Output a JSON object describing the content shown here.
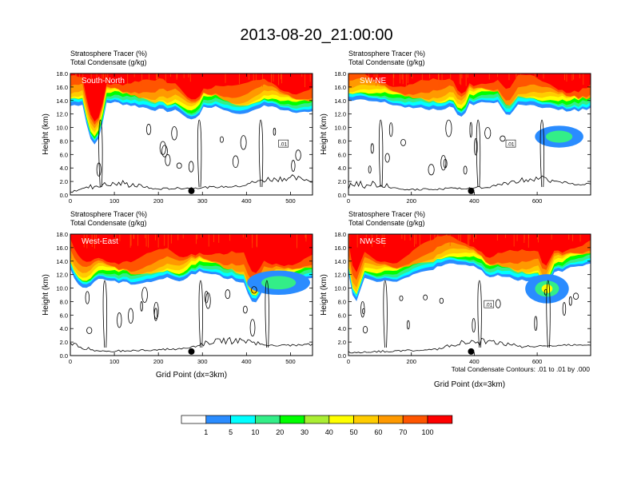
{
  "title": "2013-08-20_21:00:00",
  "footnote": "Total Condensate Contours: .01 to .01 by .000",
  "chart_data": [
    {
      "type": "heatmap",
      "variable_label": "Stratosphere Tracer",
      "variable_units": "(%)",
      "contour_label": "Total Condensate",
      "contour_units": "(g/kg)",
      "panel_label": "South-North",
      "xlabel": "",
      "ylabel": "Height (km)",
      "xlim": [
        0,
        550
      ],
      "ylim": [
        0,
        18
      ],
      "xticks": [
        0,
        100,
        200,
        300,
        400,
        500
      ],
      "yticks": [
        "0.0",
        "2.0",
        "4.0",
        "6.0",
        "8.0",
        "10.0",
        "12.0",
        "14.0",
        "16.0",
        "18.0"
      ],
      "contour_level_label": ".01",
      "marker_x": 275
    },
    {
      "type": "heatmap",
      "variable_label": "Stratosphere Tracer",
      "variable_units": "(%)",
      "contour_label": "Total Condensate",
      "contour_units": "(g/kg)",
      "panel_label": "SW-NE",
      "xlabel": "",
      "ylabel": "Height (km)",
      "xlim": [
        0,
        770
      ],
      "ylim": [
        0,
        18
      ],
      "xticks": [
        0,
        200,
        400,
        600
      ],
      "yticks": [
        "0.0",
        "2.0",
        "4.0",
        "6.0",
        "8.0",
        "10.0",
        "12.0",
        "14.0",
        "16.0",
        "18.0"
      ],
      "contour_level_label": ".01",
      "marker_x": 390
    },
    {
      "type": "heatmap",
      "variable_label": "Stratosphere Tracer",
      "variable_units": "(%)",
      "contour_label": "Total Condensate",
      "contour_units": "(g/kg)",
      "panel_label": "West-East",
      "xlabel": "Grid Point (dx=3km)",
      "ylabel": "Height (km)",
      "xlim": [
        0,
        550
      ],
      "ylim": [
        0,
        18
      ],
      "xticks": [
        0,
        100,
        200,
        300,
        400,
        500
      ],
      "yticks": [
        "0.0",
        "2.0",
        "4.0",
        "6.0",
        "8.0",
        "10.0",
        "12.0",
        "14.0",
        "16.0",
        "18.0"
      ],
      "contour_level_label": "",
      "marker_x": 275
    },
    {
      "type": "heatmap",
      "variable_label": "Stratosphere Tracer",
      "variable_units": "(%)",
      "contour_label": "Total Condensate",
      "contour_units": "(g/kg)",
      "panel_label": "NW-SE",
      "xlabel": "Grid Point (dx=3km)",
      "ylabel": "Height (km)",
      "xlim": [
        0,
        770
      ],
      "ylim": [
        0,
        18
      ],
      "xticks": [
        0,
        200,
        400,
        600
      ],
      "yticks": [
        "0.0",
        "2.0",
        "4.0",
        "6.0",
        "8.0",
        "10.0",
        "12.0",
        "14.0",
        "16.0",
        "18.0"
      ],
      "contour_level_label": ".01",
      "marker_x": 390
    }
  ],
  "colorbar": {
    "levels": [
      "1",
      "5",
      "10",
      "20",
      "30",
      "40",
      "50",
      "60",
      "70",
      "100"
    ],
    "colors": [
      "#ffffff",
      "#2a8cff",
      "#00ffff",
      "#33ee88",
      "#00ff00",
      "#aaee33",
      "#ffff00",
      "#ffcc00",
      "#ff9900",
      "#ff5500",
      "#ff0000"
    ]
  }
}
